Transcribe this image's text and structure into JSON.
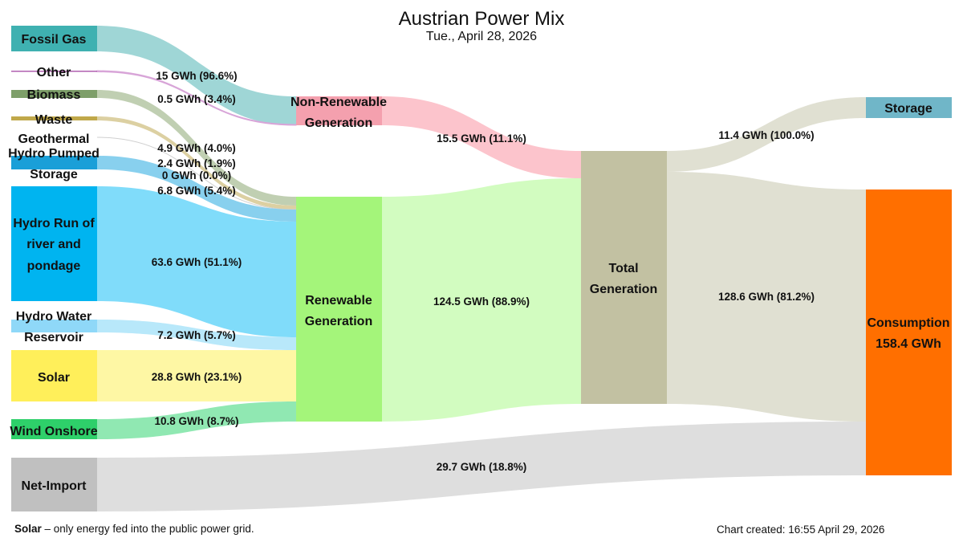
{
  "header": {
    "title": "Austrian Power Mix",
    "subtitle": "Tue., April 28, 2026"
  },
  "footer": {
    "note_bold": "Solar",
    "note_text": " – only energy fed into the public power grid.",
    "created": "Chart created: 16:55 April 29, 2026"
  },
  "chart_data": {
    "type": "sankey",
    "title": "Austrian Power Mix",
    "subtitle": "Tue., April 28, 2026",
    "unit": "GWh",
    "nodes": [
      {
        "id": "fossil_gas",
        "label": "Fossil Gas",
        "color": "#3fb1b1"
      },
      {
        "id": "other",
        "label": "Other",
        "color": "#b05fb0"
      },
      {
        "id": "biomass",
        "label": "Biomass",
        "color": "#7e9f6a"
      },
      {
        "id": "waste",
        "label": "Waste",
        "color": "#c0a84a"
      },
      {
        "id": "geothermal",
        "label": "Geothermal",
        "color": "#b7b7b7"
      },
      {
        "id": "hydro_pumped",
        "label": "Hydro Pumped Storage",
        "color": "#1a9fd8"
      },
      {
        "id": "hydro_ror",
        "label": "Hydro Run of river and pondage",
        "color": "#00b4f0"
      },
      {
        "id": "hydro_res",
        "label": "Hydro Water Reservoir",
        "color": "#8fd8f8"
      },
      {
        "id": "solar",
        "label": "Solar",
        "color": "#ffef5a"
      },
      {
        "id": "wind",
        "label": "Wind Onshore",
        "color": "#2ed06a"
      },
      {
        "id": "net_import",
        "label": "Net-Import",
        "color": "#c0c0c0"
      },
      {
        "id": "non_renewable",
        "label": "Non-Renewable Generation",
        "color": "#f4a0ae"
      },
      {
        "id": "renewable",
        "label": "Renewable Generation",
        "color": "#a4f57a"
      },
      {
        "id": "total",
        "label": "Total Generation",
        "color": "#c2c1a2"
      },
      {
        "id": "storage",
        "label": "Storage",
        "color": "#70b6c8"
      },
      {
        "id": "consumption",
        "label": "Consumption",
        "color": "#ff6f00",
        "total_label": "158.4 GWh"
      }
    ],
    "links": [
      {
        "source": "fossil_gas",
        "target": "non_renewable",
        "value": 15,
        "label": "15 GWh (96.6%)"
      },
      {
        "source": "other",
        "target": "non_renewable",
        "value": 0.5,
        "label": "0.5 GWh (3.4%)"
      },
      {
        "source": "biomass",
        "target": "renewable",
        "value": 4.9,
        "label": "4.9 GWh (4.0%)"
      },
      {
        "source": "waste",
        "target": "renewable",
        "value": 2.4,
        "label": "2.4 GWh (1.9%)"
      },
      {
        "source": "geothermal",
        "target": "renewable",
        "value": 0,
        "label": "0 GWh (0.0%)"
      },
      {
        "source": "hydro_pumped",
        "target": "renewable",
        "value": 6.8,
        "label": "6.8 GWh (5.4%)"
      },
      {
        "source": "hydro_ror",
        "target": "renewable",
        "value": 63.6,
        "label": "63.6 GWh (51.1%)"
      },
      {
        "source": "hydro_res",
        "target": "renewable",
        "value": 7.2,
        "label": "7.2 GWh (5.7%)"
      },
      {
        "source": "solar",
        "target": "renewable",
        "value": 28.8,
        "label": "28.8 GWh (23.1%)"
      },
      {
        "source": "wind",
        "target": "renewable",
        "value": 10.8,
        "label": "10.8 GWh (8.7%)"
      },
      {
        "source": "non_renewable",
        "target": "total",
        "value": 15.5,
        "label": "15.5 GWh (11.1%)"
      },
      {
        "source": "renewable",
        "target": "total",
        "value": 124.5,
        "label": "124.5 GWh (88.9%)"
      },
      {
        "source": "total",
        "target": "storage",
        "value": 11.4,
        "label": "11.4 GWh (100.0%)"
      },
      {
        "source": "total",
        "target": "consumption",
        "value": 128.6,
        "label": "128.6 GWh (81.2%)"
      },
      {
        "source": "net_import",
        "target": "consumption",
        "value": 29.7,
        "label": "29.7 GWh (18.8%)"
      }
    ]
  }
}
